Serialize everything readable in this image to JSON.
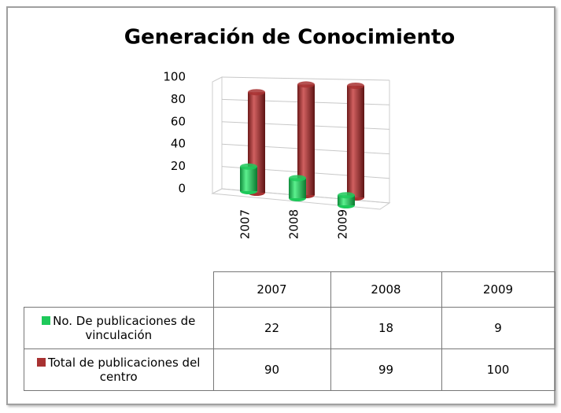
{
  "chart_data": {
    "type": "bar3d",
    "title": "Generación de Conocimiento",
    "categories": [
      "2007",
      "2008",
      "2009"
    ],
    "series": [
      {
        "name": "No. De publicaciones de vinculación",
        "color": "#1ec95a",
        "values": [
          22,
          18,
          9
        ]
      },
      {
        "name": "Total de publicaciones del centro",
        "color": "#a83232",
        "values": [
          90,
          99,
          100
        ]
      }
    ],
    "ylim": [
      0,
      100
    ],
    "yticks": [
      0,
      20,
      40,
      60,
      80,
      100
    ],
    "grid": true,
    "data_table": true
  }
}
